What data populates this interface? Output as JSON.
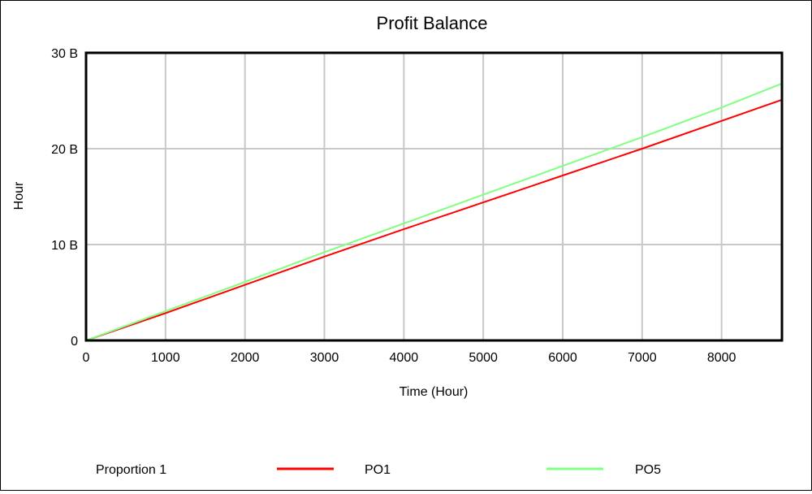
{
  "chart_data": {
    "type": "line",
    "title": "Profit Balance",
    "xlabel": "Time (Hour)",
    "ylabel": "Hour",
    "xlim": [
      0,
      8760
    ],
    "ylim": [
      0,
      30000000000
    ],
    "x_ticks": [
      0,
      1000,
      2000,
      3000,
      4000,
      5000,
      6000,
      7000,
      8000
    ],
    "x_tick_labels": [
      "0",
      "1000",
      "2000",
      "3000",
      "4000",
      "5000",
      "6000",
      "7000",
      "8000"
    ],
    "y_ticks": [
      0,
      10000000000,
      20000000000,
      30000000000
    ],
    "y_tick_labels": [
      "0",
      "10 B",
      "20 B",
      "30 B"
    ],
    "grid": true,
    "legend_prefix": "Proportion 1",
    "legend_position": "bottom",
    "series": [
      {
        "name": "PO1",
        "color": "#ff0000",
        "x": [
          0,
          1000,
          2000,
          3000,
          4000,
          5000,
          6000,
          7000,
          8000,
          8760
        ],
        "y": [
          0,
          2850000000,
          5800000000,
          8750000000,
          11600000000,
          14400000000,
          17200000000,
          20000000000,
          22900000000,
          25100000000
        ]
      },
      {
        "name": "PO5",
        "color": "#80ff80",
        "x": [
          0,
          1000,
          2000,
          3000,
          4000,
          5000,
          6000,
          7000,
          8000,
          8760
        ],
        "y": [
          0,
          3050000000,
          6100000000,
          9200000000,
          12200000000,
          15200000000,
          18200000000,
          21200000000,
          24300000000,
          26800000000
        ]
      }
    ]
  }
}
